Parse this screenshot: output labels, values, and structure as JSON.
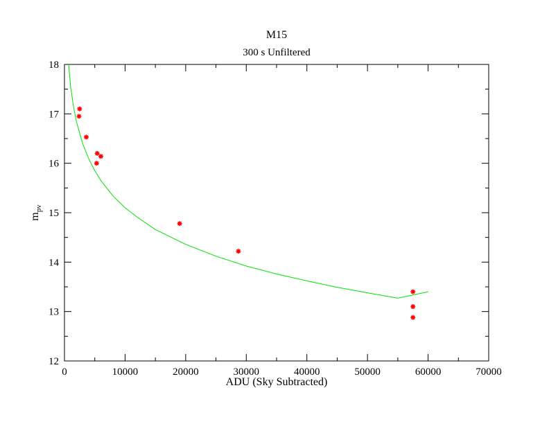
{
  "chart_data": {
    "type": "scatter",
    "title": "M15",
    "subtitle": "300 s  Unfiltered",
    "xlabel": "ADU (Sky Subtracted)",
    "ylabel_main": "m",
    "ylabel_sub": "pv",
    "xlim": [
      0,
      70000
    ],
    "ylim": [
      12,
      18
    ],
    "x_ticks": [
      "0",
      "10000",
      "20000",
      "30000",
      "40000",
      "50000",
      "60000",
      "70000"
    ],
    "y_ticks": [
      "12",
      "13",
      "14",
      "15",
      "16",
      "17",
      "18"
    ],
    "grid": false,
    "marker_color": "#ff0000",
    "fit_color": "#00e000",
    "series": [
      {
        "kind": "points",
        "x": [
          2400,
          2500,
          3600,
          5300,
          5400,
          6000,
          19000,
          28700,
          57500,
          57500,
          57500
        ],
        "y": [
          16.95,
          17.1,
          16.53,
          16.0,
          16.2,
          16.14,
          14.78,
          14.22,
          13.4,
          13.1,
          12.88
        ]
      },
      {
        "kind": "fit",
        "x": [
          700,
          1000,
          1500,
          2000,
          3000,
          4000,
          5000,
          6000,
          8000,
          10000,
          12000,
          15000,
          20000,
          25000,
          30000,
          35000,
          40000,
          45000,
          50000,
          55000,
          60000
        ],
        "y": [
          18.0,
          17.57,
          17.14,
          16.83,
          16.4,
          16.09,
          15.85,
          15.65,
          15.34,
          15.1,
          14.91,
          14.66,
          14.36,
          14.12,
          13.92,
          13.76,
          13.62,
          13.49,
          13.38,
          13.27,
          13.4
        ]
      }
    ]
  }
}
